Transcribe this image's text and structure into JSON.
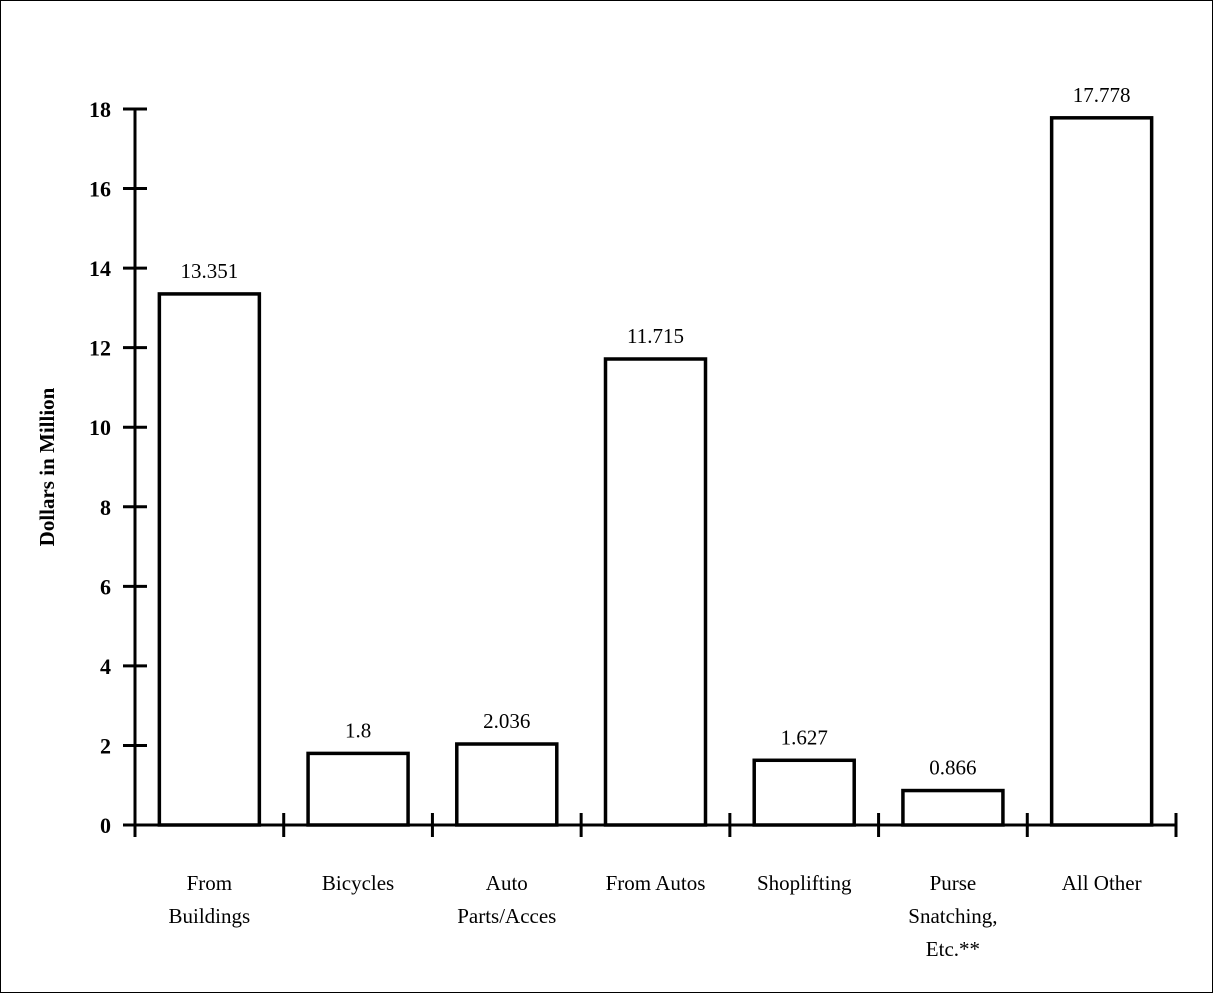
{
  "chart_data": {
    "type": "bar",
    "title": "",
    "xlabel": "",
    "ylabel": "Dollars in Million",
    "ylim": [
      0,
      18
    ],
    "yticks": [
      "0",
      "2",
      "4",
      "6",
      "8",
      "10",
      "12",
      "14",
      "16",
      "18"
    ],
    "categories": [
      [
        "From",
        "Buildings"
      ],
      [
        "Bicycles"
      ],
      [
        "Auto",
        "Parts/Acces"
      ],
      [
        "From Autos"
      ],
      [
        "Shoplifting"
      ],
      [
        "Purse",
        "Snatching,",
        "Etc.**"
      ],
      [
        "All Other"
      ]
    ],
    "values": [
      13.351,
      1.8,
      2.036,
      11.715,
      1.627,
      0.866,
      17.778
    ],
    "data_labels": [
      "13.351",
      "1.8",
      "2.036",
      "11.715",
      "1.627",
      "0.866",
      "17.778"
    ],
    "bar_fill": "#ffffff",
    "bar_stroke": "#000000",
    "grid": false,
    "legend": "none"
  }
}
